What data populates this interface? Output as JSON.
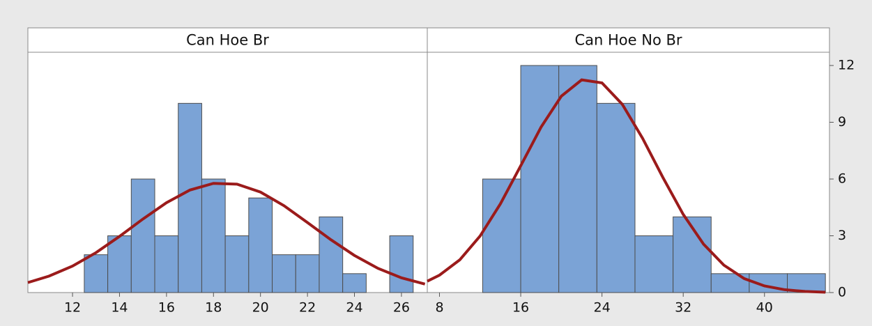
{
  "chart_data": [
    {
      "type": "histogram",
      "title": "Can Hoe Br",
      "bins": [
        12.5,
        13.5,
        14.5,
        15.5,
        16.5,
        17.5,
        18.5,
        19.5,
        20.5,
        21.5,
        22.5,
        23.5,
        24.5,
        25.5,
        26.5
      ],
      "values": [
        2,
        3,
        6,
        3,
        10,
        6,
        3,
        5,
        2,
        2,
        4,
        1,
        0,
        3
      ],
      "color": "#7ba3d6",
      "xlim": [
        10.1,
        27.1
      ],
      "xticks": [
        12,
        14,
        16,
        18,
        20,
        22,
        24,
        26
      ],
      "ylim": [
        0,
        12.7
      ],
      "fit": {
        "color": "#9b1b1b",
        "x": [
          10.1,
          11,
          12,
          13,
          14,
          15,
          16,
          17,
          18,
          19,
          20,
          21,
          22,
          23,
          24,
          25,
          26,
          27
        ],
        "values": [
          0.53,
          0.87,
          1.4,
          2.11,
          2.97,
          3.89,
          4.75,
          5.42,
          5.77,
          5.73,
          5.31,
          4.59,
          3.7,
          2.79,
          1.96,
          1.28,
          0.78,
          0.45
        ]
      }
    },
    {
      "type": "histogram",
      "title": "Can Hoe No Br",
      "bins": [
        12.25,
        16,
        19.75,
        23.5,
        27.25,
        31,
        34.75,
        38.5,
        42.25,
        46
      ],
      "values": [
        6,
        12,
        12,
        10,
        3,
        4,
        1,
        1,
        1
      ],
      "color": "#7ba3d6",
      "xlim": [
        6.8,
        46.4
      ],
      "xticks": [
        8,
        16,
        24,
        32,
        40
      ],
      "ylim": [
        0,
        12.7
      ],
      "yticks": [
        0,
        3,
        6,
        9,
        12
      ],
      "fit": {
        "color": "#9b1b1b",
        "x": [
          6.8,
          8,
          10,
          12,
          14,
          16,
          18,
          20,
          22,
          24,
          26,
          28,
          30,
          32,
          34,
          36,
          38,
          40,
          42,
          44,
          46
        ],
        "values": [
          0.6,
          0.92,
          1.73,
          2.99,
          4.69,
          6.7,
          8.74,
          10.38,
          11.24,
          11.08,
          9.95,
          8.15,
          6.08,
          4.13,
          2.56,
          1.45,
          0.74,
          0.35,
          0.15,
          0.06,
          0.02
        ]
      }
    }
  ]
}
